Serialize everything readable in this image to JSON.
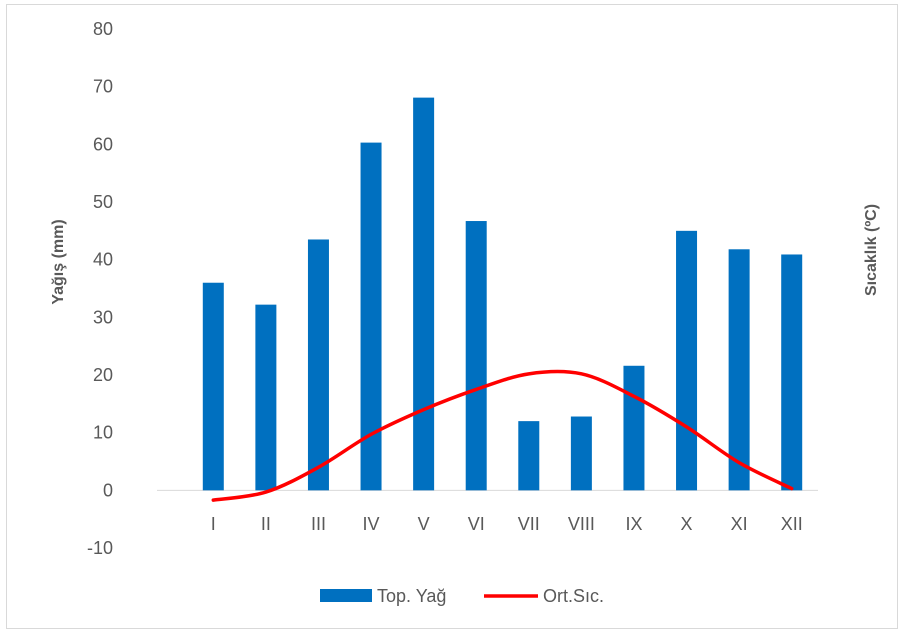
{
  "chart_data": {
    "type": "bar",
    "categories": [
      "I",
      "II",
      "III",
      "IV",
      "V",
      "VI",
      "VII",
      "VIII",
      "IX",
      "X",
      "XI",
      "XII"
    ],
    "series": [
      {
        "name": "Top. Yağ",
        "kind": "bar",
        "color": "#0070c0",
        "values": [
          36.0,
          32.2,
          43.5,
          60.3,
          68.1,
          46.7,
          12.0,
          12.8,
          21.6,
          45.0,
          41.8,
          40.9
        ]
      },
      {
        "name": "Ort.Sıc.",
        "kind": "line",
        "color": "#ff0000",
        "values": [
          -1.7,
          -0.3,
          4.0,
          9.7,
          14.0,
          17.5,
          20.2,
          20.2,
          16.3,
          11.0,
          4.8,
          0.3
        ]
      }
    ],
    "ylabel": "Yağış (mm)",
    "y2label": "Sıcaklık (ºC)",
    "ylim": [
      -10,
      80
    ],
    "yticks": [
      -10,
      0,
      10,
      20,
      30,
      40,
      50,
      60,
      70,
      80
    ],
    "grid": false,
    "legend_position": "bottom"
  }
}
